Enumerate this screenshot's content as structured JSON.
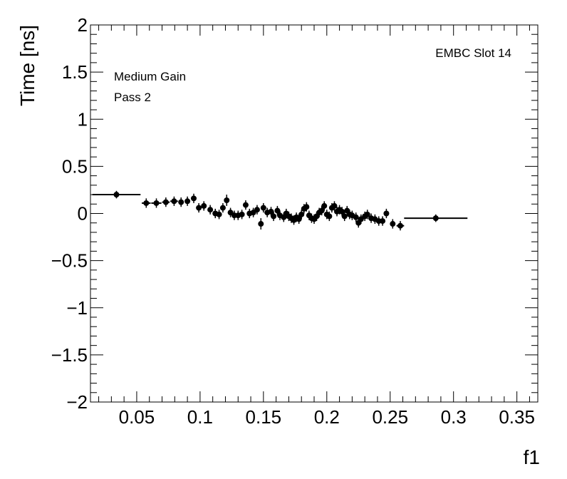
{
  "chart_data": {
    "type": "scatter",
    "xlabel": "f1",
    "ylabel": "Time [ns]",
    "xlim": [
      0.0135,
      0.3665
    ],
    "ylim": [
      -2,
      2
    ],
    "x_ticks": [
      "0.05",
      "0.1",
      "0.15",
      "0.2",
      "0.25",
      "0.3",
      "0.35"
    ],
    "y_ticks": [
      "−2",
      "−1.5",
      "−1",
      "−0.5",
      "0",
      "0.5",
      "1",
      "1.5",
      "2"
    ],
    "annotations": {
      "slot": "EMBC Slot 14",
      "gain": "Medium Gain",
      "pass": "Pass 2"
    },
    "grid": false,
    "series": [
      {
        "marker": "circle",
        "color": "#000000",
        "points": [
          {
            "x": 0.034,
            "y": 0.2,
            "xerr": 0.019,
            "yerr": 0.04
          },
          {
            "x": 0.0575,
            "y": 0.11,
            "xerr": 0.0035,
            "yerr": 0.05
          },
          {
            "x": 0.0655,
            "y": 0.11,
            "xerr": 0.004,
            "yerr": 0.05
          },
          {
            "x": 0.073,
            "y": 0.12,
            "xerr": 0.003,
            "yerr": 0.05
          },
          {
            "x": 0.0795,
            "y": 0.13,
            "xerr": 0.003,
            "yerr": 0.05
          },
          {
            "x": 0.085,
            "y": 0.12,
            "xerr": 0.002,
            "yerr": 0.05
          },
          {
            "x": 0.09,
            "y": 0.13,
            "xerr": 0.002,
            "yerr": 0.05
          },
          {
            "x": 0.095,
            "y": 0.16,
            "xerr": 0.002,
            "yerr": 0.05
          },
          {
            "x": 0.099,
            "y": 0.06,
            "xerr": 0.0015,
            "yerr": 0.05
          },
          {
            "x": 0.103,
            "y": 0.08,
            "xerr": 0.0015,
            "yerr": 0.05
          },
          {
            "x": 0.108,
            "y": 0.04,
            "xerr": 0.0015,
            "yerr": 0.05
          },
          {
            "x": 0.112,
            "y": 0.0,
            "xerr": 0.0015,
            "yerr": 0.05
          },
          {
            "x": 0.115,
            "y": -0.01,
            "xerr": 0.001,
            "yerr": 0.05
          },
          {
            "x": 0.118,
            "y": 0.06,
            "xerr": 0.001,
            "yerr": 0.05
          },
          {
            "x": 0.121,
            "y": 0.14,
            "xerr": 0.001,
            "yerr": 0.06
          },
          {
            "x": 0.124,
            "y": 0.01,
            "xerr": 0.001,
            "yerr": 0.05
          },
          {
            "x": 0.127,
            "y": -0.02,
            "xerr": 0.001,
            "yerr": 0.05
          },
          {
            "x": 0.13,
            "y": -0.02,
            "xerr": 0.001,
            "yerr": 0.05
          },
          {
            "x": 0.133,
            "y": -0.01,
            "xerr": 0.001,
            "yerr": 0.05
          },
          {
            "x": 0.136,
            "y": 0.09,
            "xerr": 0.001,
            "yerr": 0.05
          },
          {
            "x": 0.139,
            "y": 0.0,
            "xerr": 0.001,
            "yerr": 0.05
          },
          {
            "x": 0.142,
            "y": 0.01,
            "xerr": 0.001,
            "yerr": 0.05
          },
          {
            "x": 0.145,
            "y": 0.04,
            "xerr": 0.001,
            "yerr": 0.05
          },
          {
            "x": 0.148,
            "y": -0.11,
            "xerr": 0.001,
            "yerr": 0.06
          },
          {
            "x": 0.15,
            "y": 0.06,
            "xerr": 0.001,
            "yerr": 0.05
          },
          {
            "x": 0.153,
            "y": 0.01,
            "xerr": 0.001,
            "yerr": 0.05
          },
          {
            "x": 0.156,
            "y": 0.02,
            "xerr": 0.001,
            "yerr": 0.05
          },
          {
            "x": 0.158,
            "y": -0.03,
            "xerr": 0.001,
            "yerr": 0.05
          },
          {
            "x": 0.161,
            "y": 0.03,
            "xerr": 0.001,
            "yerr": 0.05
          },
          {
            "x": 0.163,
            "y": -0.02,
            "xerr": 0.001,
            "yerr": 0.05
          },
          {
            "x": 0.166,
            "y": -0.04,
            "xerr": 0.001,
            "yerr": 0.05
          },
          {
            "x": 0.168,
            "y": 0.0,
            "xerr": 0.001,
            "yerr": 0.05
          },
          {
            "x": 0.17,
            "y": -0.03,
            "xerr": 0.001,
            "yerr": 0.05
          },
          {
            "x": 0.172,
            "y": -0.05,
            "xerr": 0.001,
            "yerr": 0.05
          },
          {
            "x": 0.174,
            "y": -0.07,
            "xerr": 0.001,
            "yerr": 0.05
          },
          {
            "x": 0.176,
            "y": -0.04,
            "xerr": 0.001,
            "yerr": 0.05
          },
          {
            "x": 0.178,
            "y": -0.06,
            "xerr": 0.001,
            "yerr": 0.05
          },
          {
            "x": 0.18,
            "y": -0.01,
            "xerr": 0.001,
            "yerr": 0.05
          },
          {
            "x": 0.182,
            "y": 0.05,
            "xerr": 0.001,
            "yerr": 0.05
          },
          {
            "x": 0.184,
            "y": 0.07,
            "xerr": 0.001,
            "yerr": 0.05
          },
          {
            "x": 0.186,
            "y": -0.02,
            "xerr": 0.001,
            "yerr": 0.05
          },
          {
            "x": 0.188,
            "y": -0.05,
            "xerr": 0.001,
            "yerr": 0.05
          },
          {
            "x": 0.19,
            "y": -0.06,
            "xerr": 0.001,
            "yerr": 0.05
          },
          {
            "x": 0.192,
            "y": -0.03,
            "xerr": 0.001,
            "yerr": 0.05
          },
          {
            "x": 0.194,
            "y": 0.01,
            "xerr": 0.001,
            "yerr": 0.05
          },
          {
            "x": 0.196,
            "y": 0.03,
            "xerr": 0.001,
            "yerr": 0.05
          },
          {
            "x": 0.198,
            "y": 0.08,
            "xerr": 0.001,
            "yerr": 0.05
          },
          {
            "x": 0.2,
            "y": -0.01,
            "xerr": 0.001,
            "yerr": 0.05
          },
          {
            "x": 0.202,
            "y": -0.03,
            "xerr": 0.001,
            "yerr": 0.05
          },
          {
            "x": 0.204,
            "y": 0.06,
            "xerr": 0.001,
            "yerr": 0.05
          },
          {
            "x": 0.206,
            "y": 0.08,
            "xerr": 0.001,
            "yerr": 0.05
          },
          {
            "x": 0.208,
            "y": 0.02,
            "xerr": 0.001,
            "yerr": 0.05
          },
          {
            "x": 0.21,
            "y": 0.04,
            "xerr": 0.001,
            "yerr": 0.05
          },
          {
            "x": 0.212,
            "y": 0.02,
            "xerr": 0.001,
            "yerr": 0.05
          },
          {
            "x": 0.214,
            "y": -0.03,
            "xerr": 0.001,
            "yerr": 0.05
          },
          {
            "x": 0.216,
            "y": 0.03,
            "xerr": 0.001,
            "yerr": 0.05
          },
          {
            "x": 0.218,
            "y": -0.01,
            "xerr": 0.001,
            "yerr": 0.05
          },
          {
            "x": 0.22,
            "y": -0.02,
            "xerr": 0.001,
            "yerr": 0.05
          },
          {
            "x": 0.223,
            "y": -0.04,
            "xerr": 0.001,
            "yerr": 0.05
          },
          {
            "x": 0.225,
            "y": -0.1,
            "xerr": 0.001,
            "yerr": 0.05
          },
          {
            "x": 0.227,
            "y": -0.06,
            "xerr": 0.001,
            "yerr": 0.05
          },
          {
            "x": 0.23,
            "y": -0.03,
            "xerr": 0.001,
            "yerr": 0.05
          },
          {
            "x": 0.232,
            "y": -0.01,
            "xerr": 0.001,
            "yerr": 0.05
          },
          {
            "x": 0.235,
            "y": -0.05,
            "xerr": 0.001,
            "yerr": 0.05
          },
          {
            "x": 0.238,
            "y": -0.06,
            "xerr": 0.001,
            "yerr": 0.05
          },
          {
            "x": 0.241,
            "y": -0.08,
            "xerr": 0.001,
            "yerr": 0.05
          },
          {
            "x": 0.244,
            "y": -0.08,
            "xerr": 0.001,
            "yerr": 0.05
          },
          {
            "x": 0.247,
            "y": 0.0,
            "xerr": 0.001,
            "yerr": 0.05
          },
          {
            "x": 0.252,
            "y": -0.11,
            "xerr": 0.002,
            "yerr": 0.05
          },
          {
            "x": 0.258,
            "y": -0.13,
            "xerr": 0.003,
            "yerr": 0.05
          },
          {
            "x": 0.286,
            "y": -0.05,
            "xerr": 0.025,
            "yerr": 0.04
          }
        ]
      }
    ]
  }
}
